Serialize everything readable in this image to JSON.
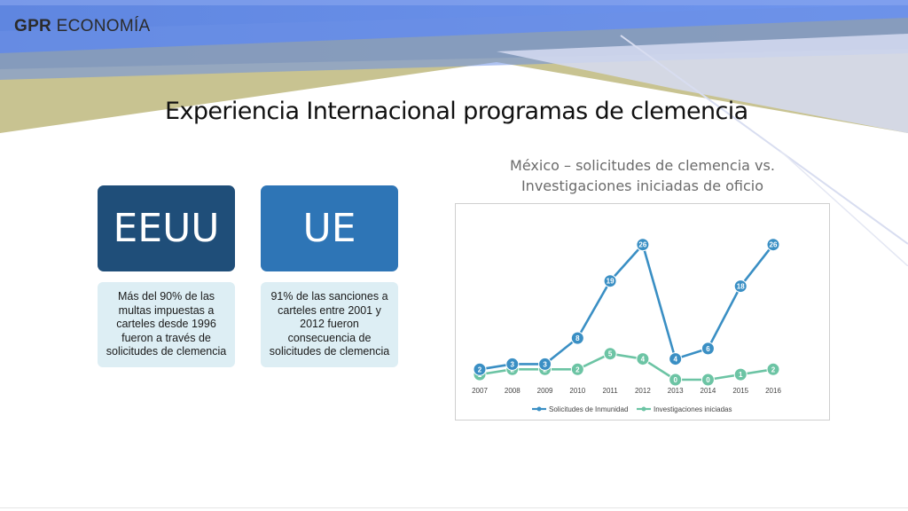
{
  "header": {
    "brand_bold": "GPR",
    "brand_rest": "ECONOMÍA"
  },
  "slide": {
    "title": "Experiencia Internacional programas de clemencia"
  },
  "cards": [
    {
      "label": "EEUU",
      "color": "#1f4e79",
      "text": "Más del 90% de las multas impuestas a carteles desde 1996 fueron a través de solicitudes de clemencia"
    },
    {
      "label": "UE",
      "color": "#2e75b6",
      "text": "91% de las sanciones a carteles entre 2001 y 2012 fueron consecuencia de solicitudes de clemencia"
    }
  ],
  "chart_title": {
    "line1": "México – solicitudes de clemencia vs.",
    "line2": "Investigaciones iniciadas de oficio"
  },
  "chart_data": {
    "type": "line",
    "title": "México – solicitudes de clemencia vs. Investigaciones iniciadas de oficio",
    "categories": [
      "2007",
      "2008",
      "2009",
      "2010",
      "2011",
      "2012",
      "2013",
      "2014",
      "2015",
      "2016"
    ],
    "series": [
      {
        "name": "Solicitudes de Inmunidad",
        "color": "#3a8fc4",
        "values": [
          2,
          3,
          3,
          8,
          19,
          26,
          4,
          6,
          18,
          26
        ]
      },
      {
        "name": "Investigaciones iniciadas",
        "color": "#6cc4a4",
        "values": [
          1,
          2,
          2,
          2,
          5,
          4,
          0,
          0,
          1,
          2
        ]
      }
    ],
    "ylim": [
      0,
      28
    ],
    "grid": false,
    "data_labels": true,
    "legend": "bottom"
  }
}
